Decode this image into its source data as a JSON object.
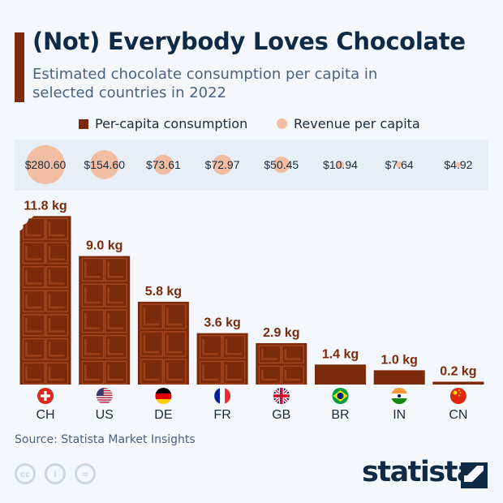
{
  "header": {
    "title": "(Not) Everybody Loves Chocolate",
    "subtitle": "Estimated chocolate consumption per capita in selected countries in 2022"
  },
  "legend": {
    "items": [
      {
        "label": "Per-capita consumption",
        "color": "#7b2a0b",
        "shape": "square"
      },
      {
        "label": "Revenue per capita",
        "color": "#f2bea3",
        "shape": "circle"
      }
    ]
  },
  "chart_data": {
    "type": "bar",
    "categories": [
      "CH",
      "US",
      "DE",
      "FR",
      "GB",
      "BR",
      "IN",
      "CN"
    ],
    "series": [
      {
        "name": "Per-capita consumption",
        "unit": "kg",
        "values": [
          11.8,
          9.0,
          5.8,
          3.6,
          2.9,
          1.4,
          1.0,
          0.2
        ],
        "labels": [
          "11.8 kg",
          "9.0 kg",
          "5.8 kg",
          "3.6 kg",
          "2.9 kg",
          "1.4 kg",
          "1.0 kg",
          "0.2 kg"
        ],
        "color": "#7b2a0b"
      },
      {
        "name": "Revenue per capita",
        "unit": "USD",
        "values": [
          280.6,
          154.6,
          73.61,
          72.97,
          50.45,
          10.94,
          7.64,
          4.92
        ],
        "labels": [
          "$280.60",
          "$154.60",
          "$73.61",
          "$72.97",
          "$50.45",
          "$10.94",
          "$7.64",
          "$4.92"
        ],
        "color": "#f2bea3"
      }
    ],
    "flags": [
      "switzerland-flag",
      "usa-flag",
      "germany-flag",
      "france-flag",
      "uk-flag",
      "brazil-flag",
      "india-flag",
      "china-flag"
    ]
  },
  "footer": {
    "source": "Source: Statista Market Insights",
    "brand": "statista",
    "license_icons": [
      "cc-icon",
      "by-icon",
      "nd-icon"
    ]
  },
  "colors": {
    "bar": "#7b2a0b",
    "bar_highlight": "#a3461f",
    "bubble": "#f2bea3",
    "band": "#e8eef6",
    "title": "#0f2a44"
  }
}
